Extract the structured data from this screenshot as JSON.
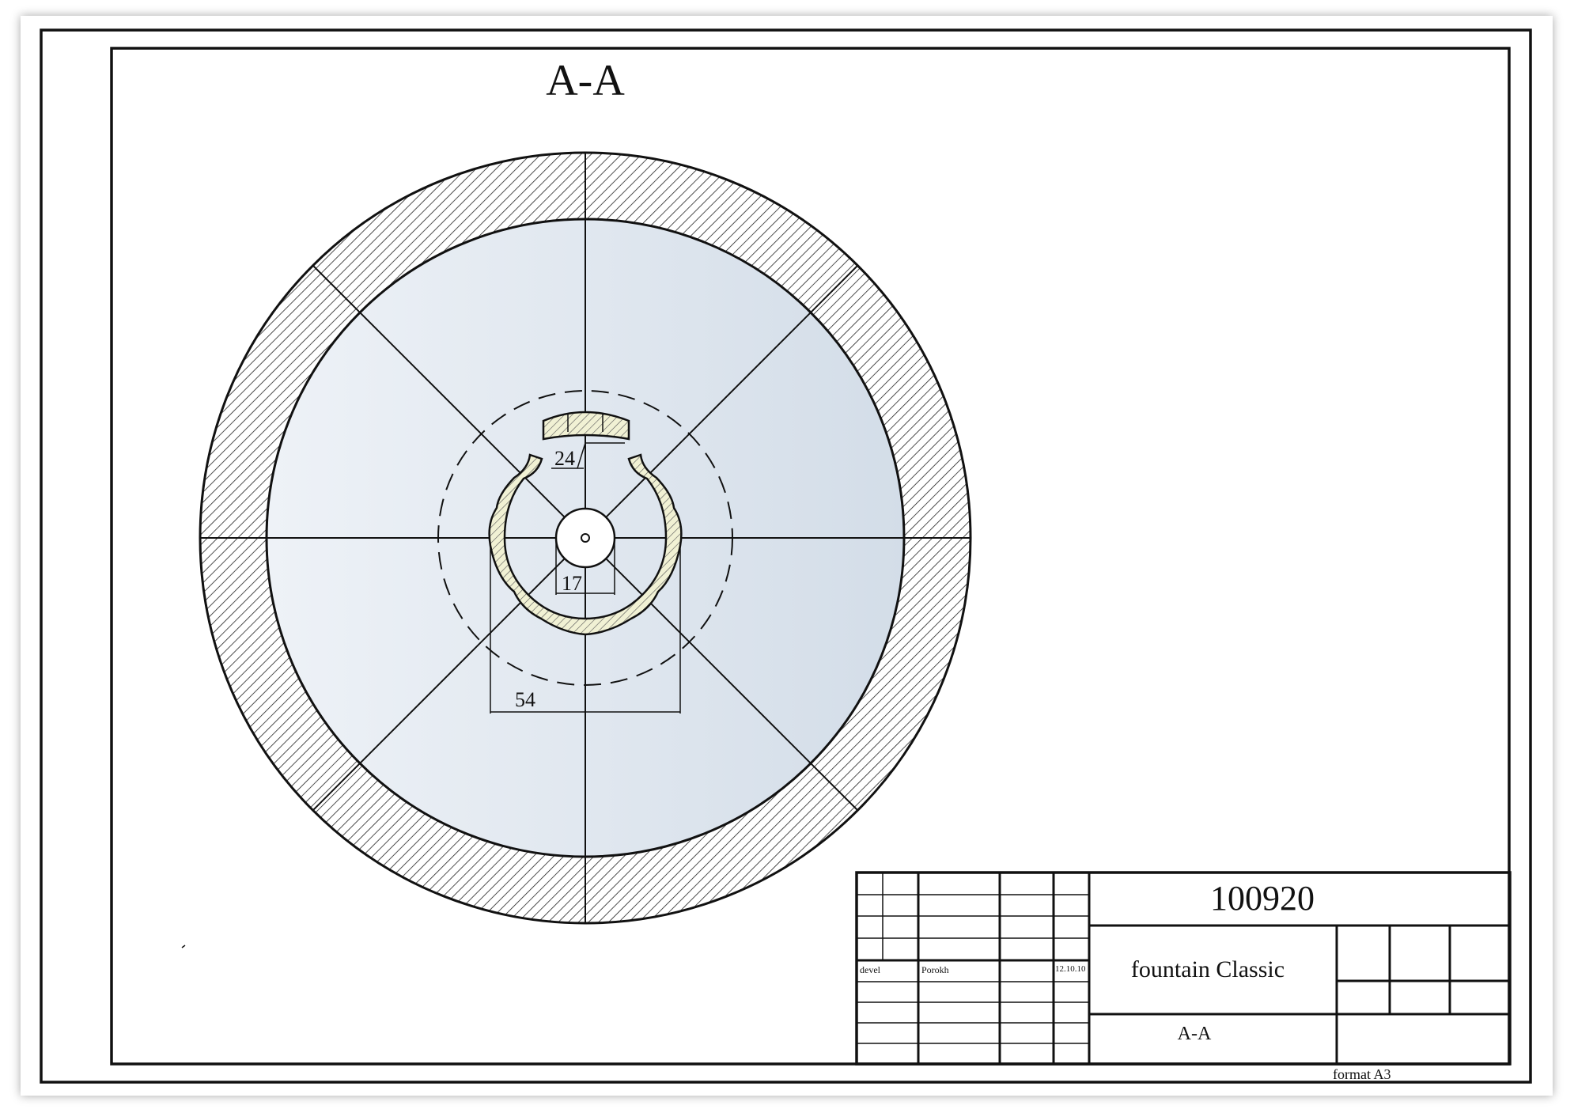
{
  "drawing": {
    "section_title": "A-A",
    "dimensions": {
      "inner_slot": "24",
      "hub": "17",
      "ring_span": "54"
    }
  },
  "title_block": {
    "number": "100920",
    "name": "fountain Classic",
    "view": "A-A",
    "role": "devel",
    "author": "Porokh",
    "date": "12.10.10",
    "format": "format A3"
  },
  "colors": {
    "ink": "#111111",
    "disc_fill": "#dfe6ee",
    "part_fill": "#f1f1d4",
    "hatch": "#222222"
  }
}
